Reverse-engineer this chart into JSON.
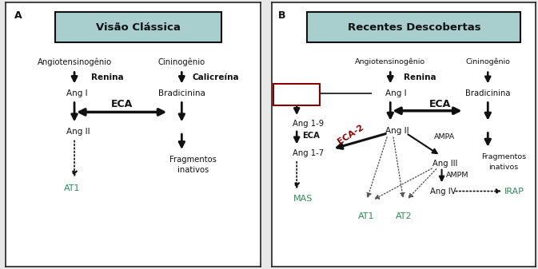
{
  "fig_width": 6.73,
  "fig_height": 3.37,
  "bg_color": "#e8e8e8",
  "panel_bg": "#ffffff",
  "border_color": "#222222",
  "title_box_color": "#a8cece",
  "title_A": "Visão Clássica",
  "title_B": "Recentes Descobertas",
  "label_A": "A",
  "label_B": "B",
  "green_color": "#2e8b57",
  "red_color": "#8b0000",
  "black_color": "#111111"
}
